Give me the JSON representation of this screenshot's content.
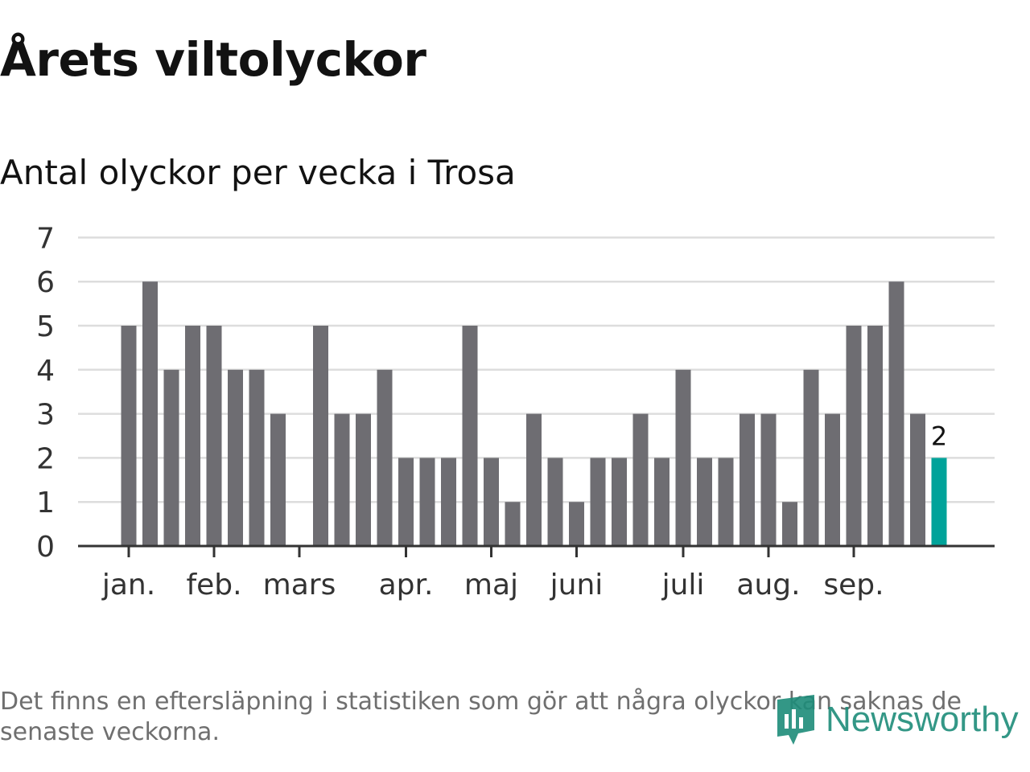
{
  "header": {
    "title": "Årets viltolyckor",
    "subtitle": "Antal olyckor per vecka i Trosa"
  },
  "footnote": "Det finns en eftersläpning i statistiken som gör att några olyckor kan saknas de senaste veckorna.",
  "logo": {
    "text": "Newsworthy"
  },
  "colors": {
    "bar": "#6e6d72",
    "highlight": "#00a39a",
    "grid": "#dddddd",
    "axis": "#333333",
    "logo": "#1d8c7a"
  },
  "chart_data": {
    "type": "bar",
    "ylim": [
      0,
      7
    ],
    "yticks": [
      0,
      1,
      2,
      3,
      4,
      5,
      6,
      7
    ],
    "grid": true,
    "months": [
      {
        "label": "jan.",
        "week": 1
      },
      {
        "label": "feb.",
        "week": 5
      },
      {
        "label": "mars",
        "week": 9
      },
      {
        "label": "apr.",
        "week": 14
      },
      {
        "label": "maj",
        "week": 18
      },
      {
        "label": "juni",
        "week": 22
      },
      {
        "label": "juli",
        "week": 27
      },
      {
        "label": "aug.",
        "week": 31
      },
      {
        "label": "sep.",
        "week": 35
      }
    ],
    "values": [
      5,
      6,
      4,
      5,
      5,
      4,
      4,
      3,
      0,
      5,
      3,
      3,
      4,
      2,
      2,
      2,
      5,
      2,
      1,
      3,
      2,
      1,
      2,
      2,
      3,
      2,
      4,
      2,
      2,
      3,
      3,
      1,
      4,
      3,
      5,
      5,
      6,
      3,
      2
    ],
    "highlight_index": 38,
    "highlight_label": "2"
  }
}
